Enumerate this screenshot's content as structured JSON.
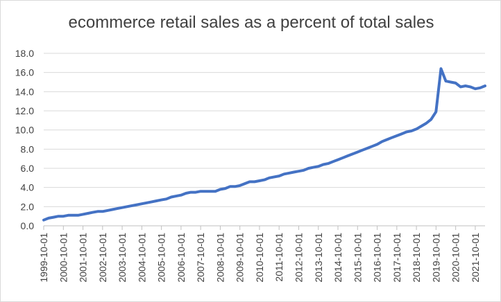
{
  "chart_data": {
    "type": "line",
    "title": "ecommerce retail sales as a percent of total sales",
    "xlabel": "",
    "ylabel": "",
    "ylim": [
      0,
      18
    ],
    "yticks": [
      "0.0",
      "2.0",
      "4.0",
      "6.0",
      "8.0",
      "10.0",
      "12.0",
      "14.0",
      "16.0",
      "18.0"
    ],
    "xticks": [
      "1999-10-01",
      "2000-10-01",
      "2001-10-01",
      "2002-10-01",
      "2003-10-01",
      "2004-10-01",
      "2005-10-01",
      "2006-10-01",
      "2007-10-01",
      "2008-10-01",
      "2009-10-01",
      "2010-10-01",
      "2011-10-01",
      "2012-10-01",
      "2013-10-01",
      "2014-10-01",
      "2015-10-01",
      "2016-10-01",
      "2017-10-01",
      "2018-10-01",
      "2019-10-01",
      "2020-10-01",
      "2021-10-01"
    ],
    "grid": "horizontal",
    "legend": "none",
    "line_color": "#4472c4",
    "series": [
      {
        "x": [
          "1999-10-01",
          "2000-01-01",
          "2000-04-01",
          "2000-07-01",
          "2000-10-01",
          "2001-01-01",
          "2001-04-01",
          "2001-07-01",
          "2001-10-01",
          "2002-01-01",
          "2002-04-01",
          "2002-07-01",
          "2002-10-01",
          "2003-01-01",
          "2003-04-01",
          "2003-07-01",
          "2003-10-01",
          "2004-01-01",
          "2004-04-01",
          "2004-07-01",
          "2004-10-01",
          "2005-01-01",
          "2005-04-01",
          "2005-07-01",
          "2005-10-01",
          "2006-01-01",
          "2006-04-01",
          "2006-07-01",
          "2006-10-01",
          "2007-01-01",
          "2007-04-01",
          "2007-07-01",
          "2007-10-01",
          "2008-01-01",
          "2008-04-01",
          "2008-07-01",
          "2008-10-01",
          "2009-01-01",
          "2009-04-01",
          "2009-07-01",
          "2009-10-01",
          "2010-01-01",
          "2010-04-01",
          "2010-07-01",
          "2010-10-01",
          "2011-01-01",
          "2011-04-01",
          "2011-07-01",
          "2011-10-01",
          "2012-01-01",
          "2012-04-01",
          "2012-07-01",
          "2012-10-01",
          "2013-01-01",
          "2013-04-01",
          "2013-07-01",
          "2013-10-01",
          "2014-01-01",
          "2014-04-01",
          "2014-07-01",
          "2014-10-01",
          "2015-01-01",
          "2015-04-01",
          "2015-07-01",
          "2015-10-01",
          "2016-01-01",
          "2016-04-01",
          "2016-07-01",
          "2016-10-01",
          "2017-01-01",
          "2017-04-01",
          "2017-07-01",
          "2017-10-01",
          "2018-01-01",
          "2018-04-01",
          "2018-07-01",
          "2018-10-01",
          "2019-01-01",
          "2019-04-01",
          "2019-07-01",
          "2019-10-01",
          "2020-01-01",
          "2020-04-01",
          "2020-07-01",
          "2020-10-01",
          "2021-01-01",
          "2021-04-01",
          "2021-07-01",
          "2021-10-01",
          "2022-01-01",
          "2022-04-01"
        ],
        "values": [
          0.6,
          0.8,
          0.9,
          1.0,
          1.0,
          1.1,
          1.1,
          1.1,
          1.2,
          1.3,
          1.4,
          1.5,
          1.5,
          1.6,
          1.7,
          1.8,
          1.9,
          2.0,
          2.1,
          2.2,
          2.3,
          2.4,
          2.5,
          2.6,
          2.7,
          2.8,
          3.0,
          3.1,
          3.2,
          3.4,
          3.5,
          3.5,
          3.6,
          3.6,
          3.6,
          3.6,
          3.8,
          3.9,
          4.1,
          4.1,
          4.2,
          4.4,
          4.6,
          4.6,
          4.7,
          4.8,
          5.0,
          5.1,
          5.2,
          5.4,
          5.5,
          5.6,
          5.7,
          5.8,
          6.0,
          6.1,
          6.2,
          6.4,
          6.5,
          6.7,
          6.9,
          7.1,
          7.3,
          7.5,
          7.7,
          7.9,
          8.1,
          8.3,
          8.5,
          8.8,
          9.0,
          9.2,
          9.4,
          9.6,
          9.8,
          9.9,
          10.1,
          10.4,
          10.7,
          11.1,
          11.9,
          16.4,
          15.1,
          15.0,
          14.9,
          14.5,
          14.6,
          14.5,
          14.3,
          14.4,
          14.6
        ]
      }
    ]
  }
}
